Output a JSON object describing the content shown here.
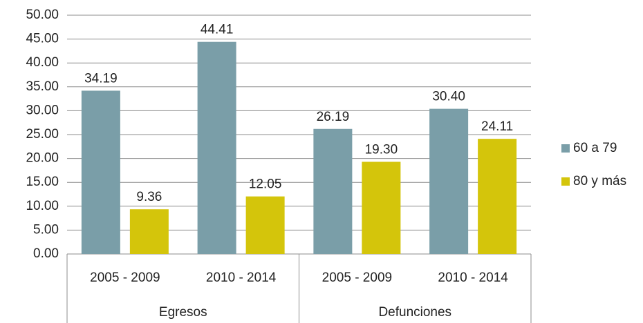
{
  "chart_data": {
    "type": "bar",
    "categories": [
      "2005 - 2009",
      "2010 - 2014",
      "2005 - 2009",
      "2010 - 2014"
    ],
    "groups": [
      "Egresos",
      "Defunciones"
    ],
    "series": [
      {
        "name": "60 a 79",
        "color": "#7a9ea8",
        "values": [
          34.19,
          44.41,
          26.19,
          30.4
        ],
        "value_labels": [
          "34.19",
          "44.41",
          "26.19",
          "30.40"
        ]
      },
      {
        "name": "80 y más",
        "color": "#d4c50b",
        "values": [
          9.36,
          12.05,
          19.3,
          24.11
        ],
        "value_labels": [
          "9.36",
          "12.05",
          "19.30",
          "24.11"
        ]
      }
    ],
    "ylim": [
      0,
      50
    ],
    "yticks": [
      {
        "value": 0,
        "label": "0.00"
      },
      {
        "value": 5,
        "label": "5.00"
      },
      {
        "value": 10,
        "label": "10.00"
      },
      {
        "value": 15,
        "label": "15.00"
      },
      {
        "value": 20,
        "label": "20.00"
      },
      {
        "value": 25,
        "label": "25.00"
      },
      {
        "value": 30,
        "label": "30.00"
      },
      {
        "value": 35,
        "label": "35.00"
      },
      {
        "value": 40,
        "label": "40.00"
      },
      {
        "value": 45,
        "label": "45.00"
      },
      {
        "value": 50,
        "label": "50.00"
      }
    ],
    "grid": true,
    "legend": "right"
  }
}
